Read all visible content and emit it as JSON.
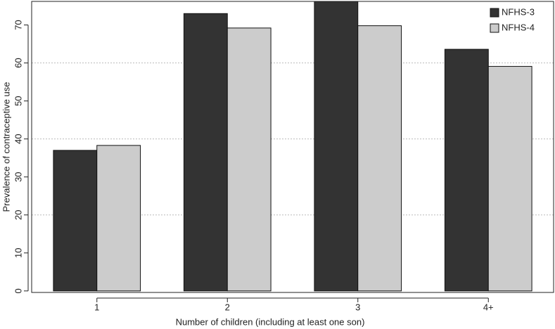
{
  "chart_data": {
    "type": "bar",
    "x_label": "Number of children (including at least one son)",
    "y_label": "Prevalence of contraceptive use",
    "categories": [
      "1",
      "2",
      "3",
      "4+"
    ],
    "series": [
      {
        "name": "NFHS-3",
        "color": "#333333",
        "values": [
          37,
          73,
          76.2,
          63.6
        ]
      },
      {
        "name": "NFHS-4",
        "color": "#cccccc",
        "values": [
          38.3,
          69.2,
          69.8,
          59.1
        ]
      }
    ],
    "ylim": [
      -0.4,
      76.2
    ],
    "yticks": [
      0,
      10,
      20,
      30,
      40,
      50,
      60,
      70
    ],
    "ygrid": [
      20,
      40,
      60
    ],
    "legend": "top-right"
  }
}
